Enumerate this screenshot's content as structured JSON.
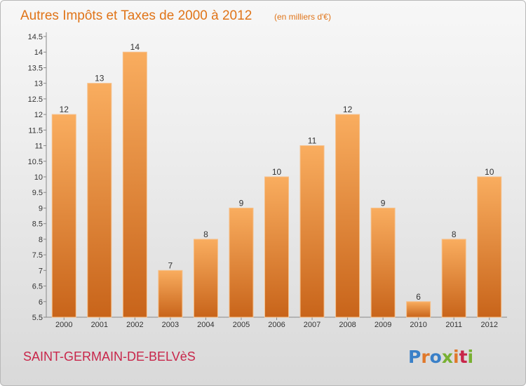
{
  "title": "Autres Impôts et Taxes de 2000 à 2012",
  "subtitle": "(en milliers d'€)",
  "commune": "SAINT-GERMAIN-DE-BELVèS",
  "logo": {
    "letters": [
      "P",
      "r",
      "o",
      "x",
      "i",
      "t",
      "i"
    ],
    "colors": [
      "#3a80c8",
      "#e0782a",
      "#3a80c8",
      "#78b032",
      "#e0782a",
      "#c8264a",
      "#78b032"
    ]
  },
  "colors": {
    "bar_light": "#f9ad5f",
    "bar_dark": "#c8641a",
    "title": "#e07418",
    "commune": "#c8264a"
  },
  "chart_data": {
    "type": "bar",
    "title": "Autres Impôts et Taxes de 2000 à 2012",
    "subtitle": "(en milliers d'€)",
    "categories": [
      "2000",
      "2001",
      "2002",
      "2003",
      "2004",
      "2005",
      "2006",
      "2007",
      "2008",
      "2009",
      "2010",
      "2011",
      "2012"
    ],
    "values": [
      12,
      13,
      14,
      7,
      8,
      9,
      10,
      11,
      12,
      9,
      6,
      8,
      10
    ],
    "ylim": [
      5.5,
      14.5
    ],
    "yticks": [
      "5.5",
      "6",
      "6.5",
      "7",
      "7.5",
      "8",
      "8.5",
      "9",
      "9.5",
      "10",
      "10.5",
      "11",
      "11.5",
      "12",
      "12.5",
      "13",
      "13.5",
      "14",
      "14.5"
    ],
    "grid": false,
    "legend": "none"
  }
}
